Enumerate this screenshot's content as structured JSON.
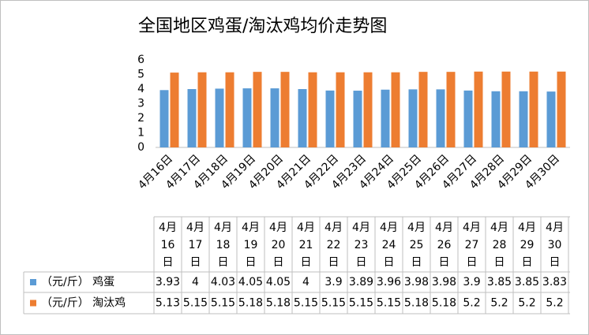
{
  "chart_data": {
    "type": "bar",
    "title": "全国地区鸡蛋/淘汰鸡均价走势图",
    "categories": [
      "4月16日",
      "4月17日",
      "4月18日",
      "4月19日",
      "4月20日",
      "4月21日",
      "4月22日",
      "4月23日",
      "4月24日",
      "4月25日",
      "4月26日",
      "4月27日",
      "4月28日",
      "4月29日",
      "4月30日"
    ],
    "series": [
      {
        "name": "（元/斤） 鸡蛋",
        "color": "#5b9bd5",
        "values": [
          3.93,
          4,
          4.03,
          4.05,
          4.05,
          4,
          3.9,
          3.89,
          3.96,
          3.98,
          3.98,
          3.9,
          3.85,
          3.85,
          3.83
        ]
      },
      {
        "name": "（元/斤） 淘汰鸡",
        "color": "#ed7d31",
        "values": [
          5.13,
          5.15,
          5.15,
          5.18,
          5.18,
          5.15,
          5.15,
          5.15,
          5.15,
          5.18,
          5.18,
          5.2,
          5.2,
          5.2,
          5.2
        ]
      }
    ],
    "ylim": [
      0,
      6
    ],
    "yticks": [
      0,
      1,
      2,
      3,
      4,
      5,
      6
    ],
    "grid": false
  }
}
